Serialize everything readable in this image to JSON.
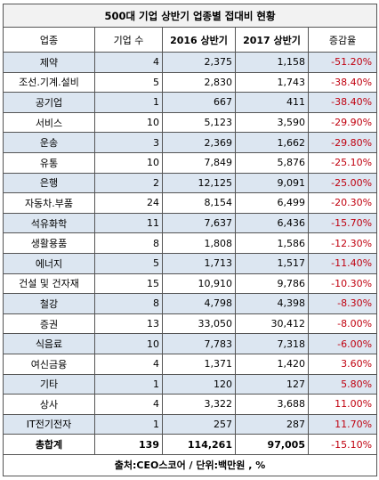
{
  "title": "500대 기업 상반기 업종별 접대비 현황",
  "headers": [
    "업종",
    "기업 수",
    "2016 상반기",
    "2017 상반기",
    "증감율"
  ],
  "rows": [
    {
      "industry": "제약",
      "count": "4",
      "y2016": "2,375",
      "y2017": "1,158",
      "rate": "-51.20%"
    },
    {
      "industry": "조선.기계.설비",
      "count": "5",
      "y2016": "2,830",
      "y2017": "1,743",
      "rate": "-38.40%"
    },
    {
      "industry": "공기업",
      "count": "1",
      "y2016": "667",
      "y2017": "411",
      "rate": "-38.40%"
    },
    {
      "industry": "서비스",
      "count": "10",
      "y2016": "5,123",
      "y2017": "3,590",
      "rate": "-29.90%"
    },
    {
      "industry": "운송",
      "count": "3",
      "y2016": "2,369",
      "y2017": "1,662",
      "rate": "-29.80%"
    },
    {
      "industry": "유통",
      "count": "10",
      "y2016": "7,849",
      "y2017": "5,876",
      "rate": "-25.10%"
    },
    {
      "industry": "은행",
      "count": "2",
      "y2016": "12,125",
      "y2017": "9,091",
      "rate": "-25.00%"
    },
    {
      "industry": "자동차.부품",
      "count": "24",
      "y2016": "8,154",
      "y2017": "6,499",
      "rate": "-20.30%"
    },
    {
      "industry": "석유화학",
      "count": "11",
      "y2016": "7,637",
      "y2017": "6,436",
      "rate": "-15.70%"
    },
    {
      "industry": "생활용품",
      "count": "8",
      "y2016": "1,808",
      "y2017": "1,586",
      "rate": "-12.30%"
    },
    {
      "industry": "에너지",
      "count": "5",
      "y2016": "1,713",
      "y2017": "1,517",
      "rate": "-11.40%"
    },
    {
      "industry": "건설 및 건자재",
      "count": "15",
      "y2016": "10,910",
      "y2017": "9,786",
      "rate": "-10.30%"
    },
    {
      "industry": "철강",
      "count": "8",
      "y2016": "4,798",
      "y2017": "4,398",
      "rate": "-8.30%"
    },
    {
      "industry": "증권",
      "count": "13",
      "y2016": "33,050",
      "y2017": "30,412",
      "rate": "-8.00%"
    },
    {
      "industry": "식음료",
      "count": "10",
      "y2016": "7,783",
      "y2017": "7,318",
      "rate": "-6.00%"
    },
    {
      "industry": "여신금융",
      "count": "4",
      "y2016": "1,371",
      "y2017": "1,420",
      "rate": "3.60%"
    },
    {
      "industry": "기타",
      "count": "1",
      "y2016": "120",
      "y2017": "127",
      "rate": "5.80%"
    },
    {
      "industry": "상사",
      "count": "4",
      "y2016": "3,322",
      "y2017": "3,688",
      "rate": "11.00%"
    },
    {
      "industry": "IT전기전자",
      "count": "1",
      "y2016": "257",
      "y2017": "287",
      "rate": "11.70%"
    }
  ],
  "total": {
    "industry": "총합계",
    "count": "139",
    "y2016": "114,261",
    "y2017": "97,005",
    "rate": "-15.10%"
  },
  "footer": "출처:CEO스코어 / 단위:백만원 , %",
  "colors": {
    "row_shade": "#dce6f1",
    "rate_text": "#c0000f",
    "title_bg": "#f2f2f2"
  }
}
